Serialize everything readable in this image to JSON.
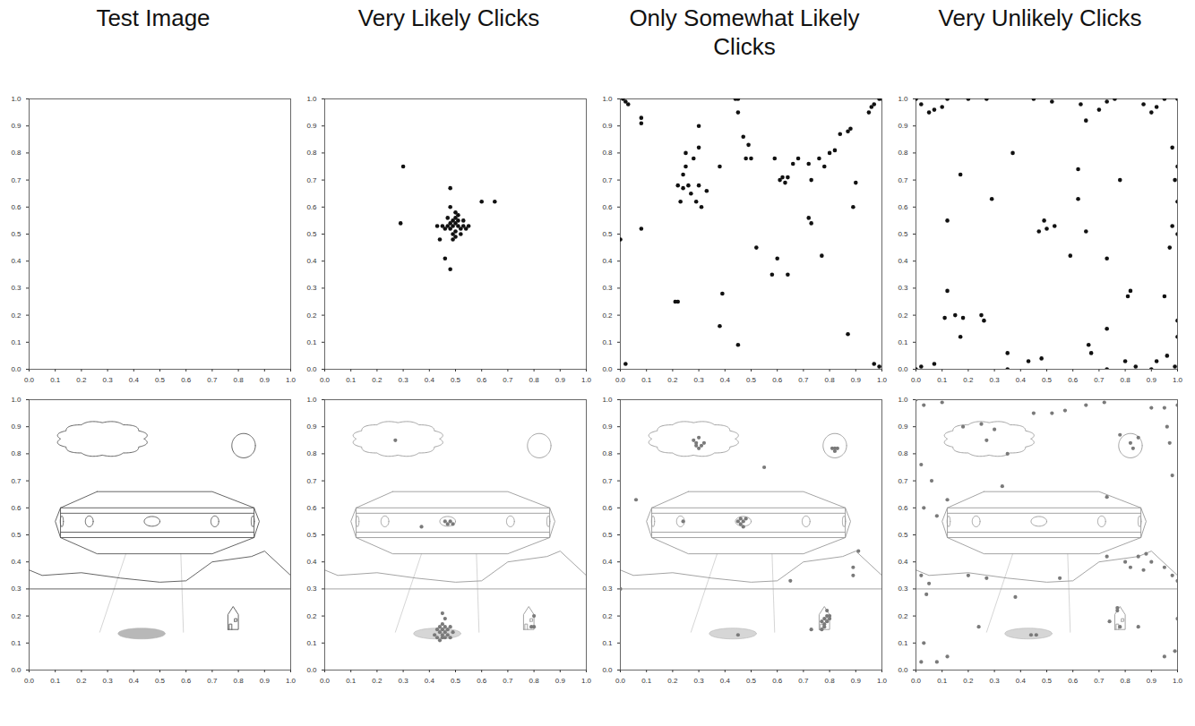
{
  "chart_data": [
    {
      "type": "scatter",
      "title": "Test Image",
      "color": "#111111",
      "marker": "circle",
      "xlim": [
        0,
        1
      ],
      "ylim": [
        0,
        1
      ],
      "xticks": [
        0,
        0.1,
        0.2,
        0.3,
        0.4,
        0.5,
        0.6,
        0.7,
        0.8,
        0.9,
        1
      ],
      "yticks": [
        0,
        0.1,
        0.2,
        0.3,
        0.4,
        0.5,
        0.6,
        0.7,
        0.8,
        0.9,
        1
      ],
      "x": [],
      "y": []
    },
    {
      "type": "scatter",
      "title": "Very Likely Clicks",
      "color": "#111111",
      "marker": "circle",
      "xlim": [
        0,
        1
      ],
      "ylim": [
        0,
        1
      ],
      "xticks": [
        0,
        0.1,
        0.2,
        0.3,
        0.4,
        0.5,
        0.6,
        0.7,
        0.8,
        0.9,
        1
      ],
      "yticks": [
        0,
        0.1,
        0.2,
        0.3,
        0.4,
        0.5,
        0.6,
        0.7,
        0.8,
        0.9,
        1
      ],
      "x": [
        0.49,
        0.5,
        0.48,
        0.51,
        0.5,
        0.49,
        0.47,
        0.52,
        0.5,
        0.48,
        0.51,
        0.49,
        0.53,
        0.46,
        0.5,
        0.52,
        0.47,
        0.54,
        0.45,
        0.5,
        0.48,
        0.51,
        0.49,
        0.53,
        0.55,
        0.3,
        0.29,
        0.6,
        0.65,
        0.46,
        0.48,
        0.48,
        0.43,
        0.44
      ],
      "y": [
        0.53,
        0.54,
        0.52,
        0.53,
        0.51,
        0.55,
        0.53,
        0.52,
        0.56,
        0.54,
        0.55,
        0.5,
        0.53,
        0.52,
        0.58,
        0.5,
        0.56,
        0.52,
        0.53,
        0.49,
        0.6,
        0.57,
        0.48,
        0.55,
        0.53,
        0.75,
        0.54,
        0.62,
        0.62,
        0.41,
        0.37,
        0.67,
        0.53,
        0.48
      ]
    },
    {
      "type": "scatter",
      "title": "Only Somewhat Likely Clicks",
      "color": "#111111",
      "marker": "circle",
      "xlim": [
        0,
        1
      ],
      "ylim": [
        0,
        1
      ],
      "xticks": [
        0,
        0.1,
        0.2,
        0.3,
        0.4,
        0.5,
        0.6,
        0.7,
        0.8,
        0.9,
        1
      ],
      "yticks": [
        0,
        0.1,
        0.2,
        0.3,
        0.4,
        0.5,
        0.6,
        0.7,
        0.8,
        0.9,
        1
      ],
      "x": [
        0.01,
        0.02,
        0.03,
        0.08,
        0.08,
        0,
        0.02,
        0.08,
        0.22,
        0.21,
        0.22,
        0.23,
        0.24,
        0.24,
        0.25,
        0.25,
        0.26,
        0.27,
        0.28,
        0.29,
        0.3,
        0.3,
        0.3,
        0.31,
        0.33,
        0.38,
        0.39,
        0.38,
        0.44,
        0.45,
        0.45,
        0.45,
        0.47,
        0.48,
        0.49,
        0.5,
        0.52,
        0.58,
        0.59,
        0.6,
        0.61,
        0.62,
        0.63,
        0.64,
        0.64,
        0.66,
        0.68,
        0.72,
        0.72,
        0.73,
        0.73,
        0.76,
        0.77,
        0.78,
        0.8,
        0.82,
        0.84,
        0.87,
        0.88,
        0.87,
        0.89,
        0.9,
        0.95,
        0.96,
        0.97,
        0.99,
        1,
        0.97,
        0.99
      ],
      "y": [
        1,
        0.99,
        0.98,
        0.93,
        0.91,
        0.48,
        0.02,
        0.52,
        0.25,
        0.25,
        0.68,
        0.62,
        0.67,
        0.72,
        0.75,
        0.8,
        0.68,
        0.65,
        0.78,
        0.62,
        0.68,
        0.82,
        0.9,
        0.6,
        0.66,
        0.16,
        0.28,
        0.75,
        1,
        1,
        0.95,
        0.09,
        0.86,
        0.78,
        0.83,
        0.78,
        0.45,
        0.35,
        0.78,
        0.41,
        0.7,
        0.71,
        0.69,
        0.35,
        0.71,
        0.76,
        0.78,
        0.76,
        0.56,
        0.54,
        0.7,
        0.78,
        0.42,
        0.75,
        0.8,
        0.81,
        0.87,
        0.88,
        0.89,
        0.13,
        0.6,
        0.69,
        0.95,
        0.97,
        0.98,
        1,
        1,
        0.02,
        0.01
      ]
    },
    {
      "type": "scatter",
      "title": "Very Unlikely Clicks",
      "color": "#111111",
      "marker": "circle",
      "xlim": [
        0,
        1
      ],
      "ylim": [
        0,
        1
      ],
      "xticks": [
        0,
        0.1,
        0.2,
        0.3,
        0.4,
        0.5,
        0.6,
        0.7,
        0.8,
        0.9,
        1
      ],
      "yticks": [
        0,
        0.1,
        0.2,
        0.3,
        0.4,
        0.5,
        0.6,
        0.7,
        0.8,
        0.9,
        1
      ],
      "x": [
        0,
        0.02,
        0.05,
        0.07,
        0.1,
        0.12,
        0.2,
        0.27,
        0.45,
        0.52,
        0.63,
        0.7,
        0.73,
        0.76,
        0.87,
        0.9,
        0.92,
        0.95,
        1,
        0.12,
        0.17,
        0.37,
        0.65,
        0.62,
        0.62,
        0.78,
        0.98,
        1,
        0.99,
        1,
        0.98,
        1,
        0.97,
        0.47,
        0.49,
        0.5,
        0.53,
        0.59,
        0.65,
        0.73,
        0.82,
        0.81,
        0.95,
        0.12,
        0.11,
        0.15,
        0.17,
        0.18,
        0.25,
        0.26,
        0.29,
        0.35,
        0.43,
        0.48,
        0.66,
        0.67,
        0.73,
        0.8,
        0.84,
        0.9,
        0.96,
        1,
        1,
        0.99,
        0,
        0.02,
        0.07,
        0.35,
        0.73,
        0.92
      ],
      "y": [
        1,
        0.98,
        0.95,
        0.96,
        0.97,
        1,
        1,
        1,
        1,
        0.99,
        0.98,
        0.96,
        0.99,
        1,
        0.98,
        0.95,
        0.97,
        1,
        1,
        0.55,
        0.72,
        0.8,
        0.92,
        0.74,
        0.63,
        0.7,
        0.82,
        0.75,
        0.7,
        0.62,
        0.53,
        0.5,
        0.45,
        0.51,
        0.55,
        0.52,
        0.53,
        0.42,
        0.51,
        0.41,
        0.29,
        0.27,
        0.27,
        0.29,
        0.19,
        0.2,
        0.12,
        0.19,
        0.2,
        0.18,
        0.63,
        0.06,
        0.03,
        0.04,
        0.09,
        0.06,
        0.15,
        0.03,
        0.01,
        0,
        0.05,
        0.18,
        0.12,
        0.01,
        0,
        0.01,
        0.02,
        0,
        0,
        0.03
      ]
    },
    {
      "type": "scatter",
      "color": "#7a7a7a",
      "marker": "circle",
      "xlim": [
        0,
        1
      ],
      "ylim": [
        0,
        1
      ],
      "xticks": [
        0,
        0.1,
        0.2,
        0.3,
        0.4,
        0.5,
        0.6,
        0.7,
        0.8,
        0.9,
        1
      ],
      "yticks": [
        0,
        0.1,
        0.2,
        0.3,
        0.4,
        0.5,
        0.6,
        0.7,
        0.8,
        0.9,
        1
      ],
      "x": [],
      "y": []
    },
    {
      "type": "scatter",
      "color": "#7a7a7a",
      "marker": "circle",
      "xlim": [
        0,
        1
      ],
      "ylim": [
        0,
        1
      ],
      "xticks": [
        0,
        0.1,
        0.2,
        0.3,
        0.4,
        0.5,
        0.6,
        0.7,
        0.8,
        0.9,
        1
      ],
      "yticks": [
        0,
        0.1,
        0.2,
        0.3,
        0.4,
        0.5,
        0.6,
        0.7,
        0.8,
        0.9,
        1
      ],
      "x": [
        0.45,
        0.46,
        0.44,
        0.47,
        0.45,
        0.43,
        0.46,
        0.48,
        0.44,
        0.47,
        0.45,
        0.46,
        0.45,
        0.42,
        0.49,
        0.44,
        0.46,
        0.43,
        0.48,
        0.45,
        0.46,
        0.47,
        0.48,
        0.49,
        0.37,
        0.27,
        0.79,
        0.8,
        0.8
      ],
      "y": [
        0.13,
        0.12,
        0.14,
        0.13,
        0.15,
        0.12,
        0.16,
        0.12,
        0.11,
        0.15,
        0.17,
        0.19,
        0.21,
        0.13,
        0.14,
        0.16,
        0.14,
        0.15,
        0.16,
        0.12,
        0.55,
        0.54,
        0.55,
        0.54,
        0.53,
        0.85,
        0.16,
        0.16,
        0.2
      ]
    },
    {
      "type": "scatter",
      "color": "#7a7a7a",
      "marker": "circle",
      "xlim": [
        0,
        1
      ],
      "ylim": [
        0,
        1
      ],
      "xticks": [
        0,
        0.1,
        0.2,
        0.3,
        0.4,
        0.5,
        0.6,
        0.7,
        0.8,
        0.9,
        1
      ],
      "yticks": [
        0,
        0.1,
        0.2,
        0.3,
        0.4,
        0.5,
        0.6,
        0.7,
        0.8,
        0.9,
        1
      ],
      "x": [
        0.28,
        0.29,
        0.3,
        0.31,
        0.29,
        0.32,
        0.3,
        0.81,
        0.82,
        0.83,
        0.82,
        0.45,
        0.46,
        0.47,
        0.48,
        0.46,
        0.47,
        0.24,
        0.06,
        0.55,
        0.77,
        0.78,
        0.79,
        0.78,
        0.79,
        0.8,
        0.78,
        0.8,
        0.79,
        0.77,
        0.73,
        0.45,
        0.65,
        0.91,
        0.89,
        0.89,
        0
      ],
      "y": [
        0.85,
        0.84,
        0.86,
        0.83,
        0.83,
        0.84,
        0.82,
        0.82,
        0.82,
        0.82,
        0.81,
        0.55,
        0.56,
        0.55,
        0.56,
        0.54,
        0.53,
        0.55,
        0.63,
        0.75,
        0.18,
        0.19,
        0.2,
        0.17,
        0.18,
        0.2,
        0.16,
        0.19,
        0.22,
        0.15,
        0.15,
        0.13,
        0.33,
        0.44,
        0.38,
        0.35,
        0.3
      ]
    },
    {
      "type": "scatter",
      "color": "#7a7a7a",
      "marker": "circle",
      "xlim": [
        0,
        1
      ],
      "ylim": [
        0,
        1
      ],
      "xticks": [
        0,
        0.1,
        0.2,
        0.3,
        0.4,
        0.5,
        0.6,
        0.7,
        0.8,
        0.9,
        1
      ],
      "yticks": [
        0,
        0.1,
        0.2,
        0.3,
        0.4,
        0.5,
        0.6,
        0.7,
        0.8,
        0.9,
        1
      ],
      "x": [
        0,
        0.03,
        0.1,
        0.18,
        0.25,
        0.3,
        0.27,
        0.35,
        0.45,
        0.52,
        0.57,
        0.65,
        0.72,
        0.78,
        0.82,
        0.83,
        0.85,
        0.9,
        0.95,
        1,
        0.97,
        0.98,
        0.96,
        0.02,
        0.06,
        0.03,
        0.08,
        0.12,
        0.33,
        0.73,
        0.02,
        0.05,
        0.2,
        0.27,
        0.38,
        0.55,
        0.73,
        0.8,
        0.82,
        0.85,
        0.88,
        0.9,
        0.87,
        0.95,
        0.98,
        1,
        0.04,
        0.03,
        0.02,
        0.08,
        0.12,
        0.24,
        0.44,
        0.46,
        0.74,
        0.77,
        0.77,
        0.78,
        0.85,
        0.95,
        1,
        0.99
      ],
      "y": [
        1,
        0.98,
        0.99,
        0.9,
        0.91,
        0.89,
        0.85,
        0.8,
        0.95,
        0.95,
        0.96,
        0.98,
        0.99,
        0.87,
        0.84,
        0.82,
        0.86,
        0.97,
        0.97,
        0.98,
        0.84,
        0.72,
        0.9,
        0.76,
        0.7,
        0.6,
        0.57,
        0.63,
        0.68,
        0.64,
        0.35,
        0.32,
        0.35,
        0.34,
        0.27,
        0.34,
        0.42,
        0.4,
        0.38,
        0.42,
        0.43,
        0.4,
        0.37,
        0.38,
        0.35,
        0.33,
        0.28,
        0.1,
        0.03,
        0.03,
        0.05,
        0.16,
        0.13,
        0.13,
        0.18,
        0.23,
        0.22,
        0.16,
        0.16,
        0.05,
        0.19,
        0.07
      ]
    }
  ]
}
